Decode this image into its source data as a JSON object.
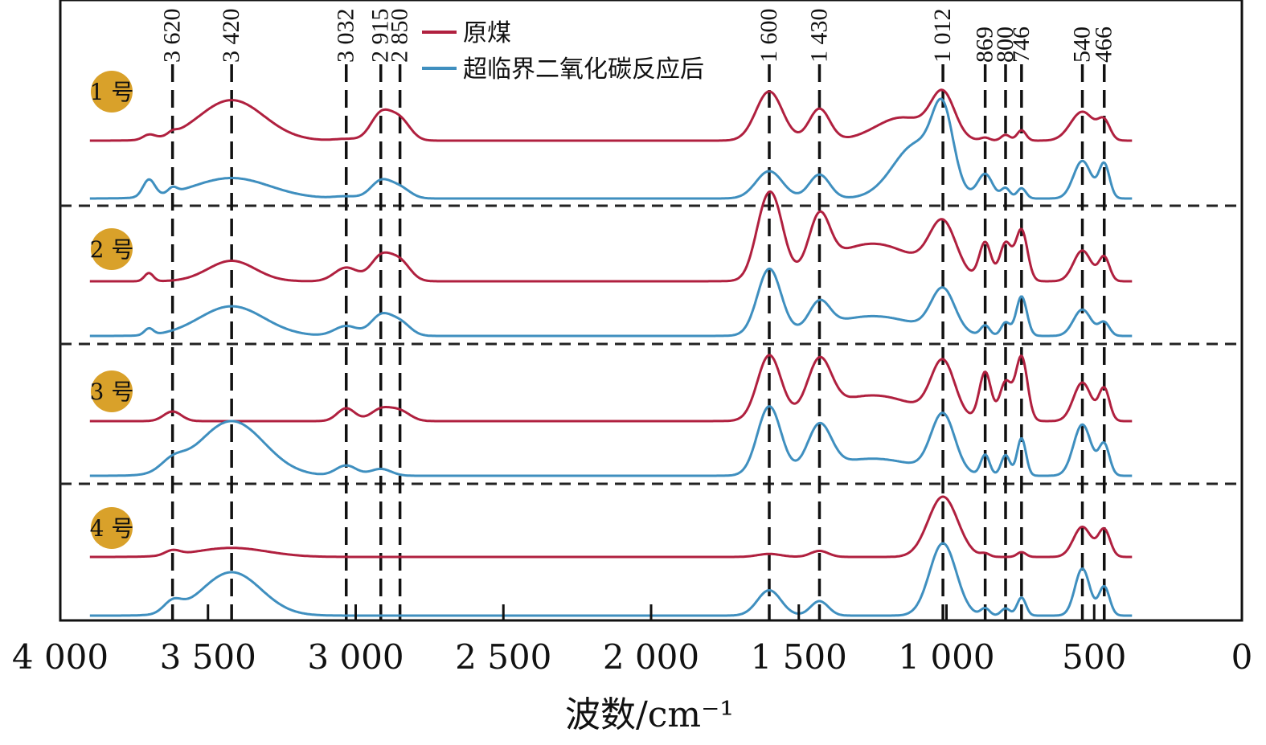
{
  "chart_data": {
    "type": "line",
    "xlabel": "波数/cm⁻¹",
    "xlim": [
      4000,
      0
    ],
    "x_ticks": [
      {
        "value": 4000,
        "label": "4 000"
      },
      {
        "value": 3500,
        "label": "3 500"
      },
      {
        "value": 3000,
        "label": "3 000"
      },
      {
        "value": 2500,
        "label": "2 500"
      },
      {
        "value": 2000,
        "label": "2 000"
      },
      {
        "value": 1500,
        "label": "1 500"
      },
      {
        "value": 1000,
        "label": "1 000"
      },
      {
        "value": 500,
        "label": "500"
      },
      {
        "value": 0,
        "label": "0"
      }
    ],
    "peak_markers": [
      {
        "value": 3620,
        "label": "3 620"
      },
      {
        "value": 3420,
        "label": "3 420"
      },
      {
        "value": 3032,
        "label": "3 032"
      },
      {
        "value": 2915,
        "label": "2 915"
      },
      {
        "value": 2850,
        "label": "2 850"
      },
      {
        "value": 1600,
        "label": "1 600"
      },
      {
        "value": 1430,
        "label": "1 430"
      },
      {
        "value": 1012,
        "label": "1 012"
      },
      {
        "value": 869,
        "label": "869"
      },
      {
        "value": 800,
        "label": "800"
      },
      {
        "value": 746,
        "label": "746"
      },
      {
        "value": 540,
        "label": "540"
      },
      {
        "value": 466,
        "label": "466"
      }
    ],
    "legend": [
      {
        "name": "原煤",
        "color": "#b0203f"
      },
      {
        "name": "超临界二氧化碳反应后",
        "color": "#3f8fbf"
      }
    ],
    "legend_position": "top-center",
    "grid": false,
    "series_x_range": [
      3900,
      370
    ],
    "panels": [
      {
        "label": "1 号",
        "series": [
          {
            "name": "原煤",
            "peaks": [
              [
                3700,
                0.08,
                20
              ],
              [
                3620,
                0.05,
                15
              ],
              [
                3420,
                0.7,
                110
              ],
              [
                3032,
                0.03,
                40
              ],
              [
                2915,
                0.45,
                35
              ],
              [
                2850,
                0.35,
                35
              ],
              [
                1600,
                0.85,
                45
              ],
              [
                1430,
                0.55,
                35
              ],
              [
                1150,
                0.4,
                90
              ],
              [
                1012,
                0.75,
                40
              ],
              [
                869,
                0.05,
                15
              ],
              [
                800,
                0.1,
                15
              ],
              [
                746,
                0.18,
                15
              ],
              [
                540,
                0.5,
                40
              ],
              [
                466,
                0.3,
                20
              ]
            ]
          },
          {
            "name": "超临界二氧化碳反应后",
            "peaks": [
              [
                3700,
                0.25,
                20
              ],
              [
                3620,
                0.08,
                15
              ],
              [
                3420,
                0.3,
                130
              ],
              [
                3032,
                0.03,
                40
              ],
              [
                2915,
                0.25,
                35
              ],
              [
                2850,
                0.15,
                35
              ],
              [
                1600,
                0.4,
                45
              ],
              [
                1430,
                0.35,
                35
              ],
              [
                1100,
                0.8,
                80
              ],
              [
                1012,
                1.0,
                35
              ],
              [
                869,
                0.35,
                25
              ],
              [
                800,
                0.15,
                15
              ],
              [
                746,
                0.15,
                15
              ],
              [
                540,
                0.55,
                30
              ],
              [
                466,
                0.5,
                18
              ]
            ]
          }
        ]
      },
      {
        "label": "2 号",
        "series": [
          {
            "name": "原煤",
            "peaks": [
              [
                3700,
                0.12,
                15
              ],
              [
                3420,
                0.3,
                80
              ],
              [
                3032,
                0.2,
                40
              ],
              [
                2915,
                0.35,
                35
              ],
              [
                2850,
                0.28,
                35
              ],
              [
                1620,
                0.7,
                35
              ],
              [
                1580,
                0.8,
                35
              ],
              [
                1430,
                0.75,
                35
              ],
              [
                1250,
                0.55,
                150
              ],
              [
                1012,
                0.75,
                45
              ],
              [
                869,
                0.55,
                20
              ],
              [
                800,
                0.55,
                20
              ],
              [
                746,
                0.75,
                20
              ],
              [
                540,
                0.45,
                30
              ],
              [
                466,
                0.35,
                18
              ]
            ]
          },
          {
            "name": "超临界二氧化碳反应后",
            "peaks": [
              [
                3700,
                0.1,
                15
              ],
              [
                3420,
                0.45,
                110
              ],
              [
                3032,
                0.15,
                40
              ],
              [
                2915,
                0.3,
                35
              ],
              [
                2850,
                0.2,
                35
              ],
              [
                1600,
                1.0,
                40
              ],
              [
                1430,
                0.4,
                35
              ],
              [
                1250,
                0.3,
                150
              ],
              [
                1012,
                0.65,
                40
              ],
              [
                869,
                0.15,
                15
              ],
              [
                800,
                0.2,
                15
              ],
              [
                746,
                0.6,
                18
              ],
              [
                540,
                0.4,
                30
              ],
              [
                466,
                0.2,
                18
              ]
            ]
          }
        ]
      },
      {
        "label": "3 号",
        "series": [
          {
            "name": "原煤",
            "peaks": [
              [
                3620,
                0.15,
                30
              ],
              [
                3032,
                0.2,
                30
              ],
              [
                2915,
                0.18,
                35
              ],
              [
                2850,
                0.15,
                35
              ],
              [
                1600,
                1.0,
                40
              ],
              [
                1430,
                0.8,
                40
              ],
              [
                1250,
                0.4,
                150
              ],
              [
                1012,
                0.85,
                40
              ],
              [
                869,
                0.75,
                20
              ],
              [
                800,
                0.6,
                20
              ],
              [
                746,
                1.0,
                20
              ],
              [
                540,
                0.6,
                30
              ],
              [
                466,
                0.5,
                18
              ]
            ]
          },
          {
            "name": "超临界二氧化碳反应后",
            "peaks": [
              [
                3620,
                0.15,
                40
              ],
              [
                3420,
                0.8,
                110
              ],
              [
                3032,
                0.15,
                35
              ],
              [
                2915,
                0.1,
                35
              ],
              [
                1600,
                1.0,
                40
              ],
              [
                1430,
                0.65,
                40
              ],
              [
                1250,
                0.25,
                150
              ],
              [
                1012,
                0.85,
                40
              ],
              [
                869,
                0.3,
                15
              ],
              [
                800,
                0.3,
                15
              ],
              [
                746,
                0.55,
                15
              ],
              [
                540,
                0.75,
                30
              ],
              [
                466,
                0.45,
                18
              ]
            ]
          }
        ]
      },
      {
        "label": "4 号",
        "series": [
          {
            "name": "原煤",
            "peaks": [
              [
                3620,
                0.08,
                25
              ],
              [
                3420,
                0.15,
                120
              ],
              [
                1600,
                0.05,
                40
              ],
              [
                1430,
                0.1,
                30
              ],
              [
                1012,
                1.0,
                50
              ],
              [
                869,
                0.05,
                15
              ],
              [
                746,
                0.08,
                15
              ],
              [
                540,
                0.5,
                30
              ],
              [
                466,
                0.45,
                20
              ]
            ]
          },
          {
            "name": "超临界二氧化碳反应后",
            "peaks": [
              [
                3620,
                0.15,
                30
              ],
              [
                3420,
                0.6,
                100
              ],
              [
                1600,
                0.35,
                40
              ],
              [
                1430,
                0.2,
                30
              ],
              [
                1012,
                1.0,
                45
              ],
              [
                869,
                0.1,
                15
              ],
              [
                800,
                0.1,
                15
              ],
              [
                746,
                0.25,
                15
              ],
              [
                540,
                0.65,
                25
              ],
              [
                466,
                0.4,
                18
              ]
            ]
          }
        ]
      }
    ]
  }
}
